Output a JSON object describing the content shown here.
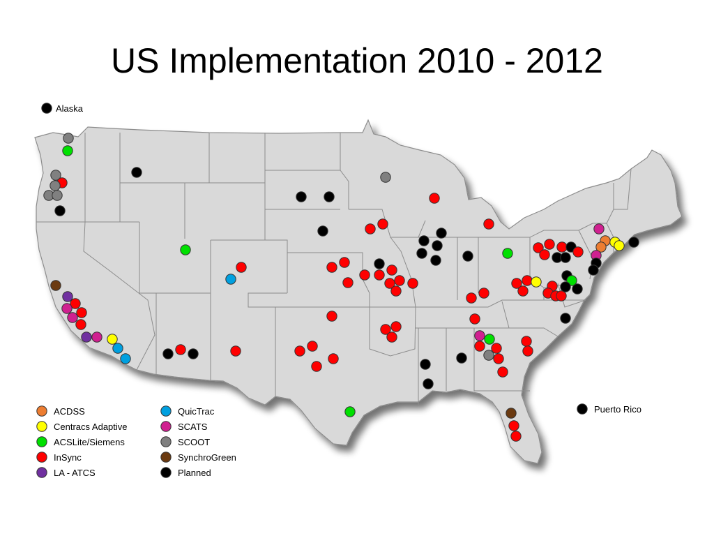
{
  "title": "US Implementation 2010 - 2012",
  "map_labels": {
    "alaska": "Alaska",
    "puerto_rico": "Puerto Rico"
  },
  "legend": [
    {
      "label": "ACDSS",
      "color": "#ED7D31"
    },
    {
      "label": "Centracs Adaptive",
      "color": "#FFFF00"
    },
    {
      "label": "ACSLite/Siemens",
      "color": "#00E000"
    },
    {
      "label": "InSync",
      "color": "#FF0000"
    },
    {
      "label": "LA - ATCS",
      "color": "#7030A0"
    },
    {
      "label": "QuicTrac",
      "color": "#00A0E0"
    },
    {
      "label": "SCATS",
      "color": "#D02090"
    },
    {
      "label": "SCOOT",
      "color": "#808080"
    },
    {
      "label": "SynchroGreen",
      "color": "#6B3A10"
    },
    {
      "label": "Planned",
      "color": "#000000"
    }
  ],
  "map_style": {
    "land_fill": "#D9D9D9",
    "border_stroke": "#8C8C8C"
  }
}
